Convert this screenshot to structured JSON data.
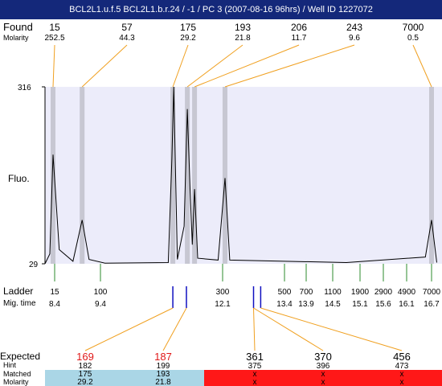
{
  "title": "BCL2L1.u.f.5  BCL2L1.b.r.24 / -1 / PC 3 (2007-08-16 96hrs) / Well ID 1227072",
  "colors": {
    "title_bg": "#14287a",
    "plot_bg": "#ececfa",
    "peak_band": "#c7c7d2",
    "found_link": "#f0a020",
    "ladder_tick": "#2e8b2e",
    "expected_mark": "#1010c0",
    "expected_red": "#e01818",
    "matched_ok": "#aad6e6",
    "matched_fail": "#ff1818"
  },
  "labels": {
    "found": "Found",
    "molarity": "Molarity",
    "fluo": "Fluo.",
    "ladder": "Ladder",
    "mig_time": "Mig. time",
    "expected": "Expected",
    "hint": "Hint",
    "matched": "Matched",
    "molarity_bottom": "Molarity"
  },
  "chart_data": {
    "type": "line",
    "ylabel": "Fluo.",
    "ylim": [
      29,
      316
    ],
    "y_ticks": [
      "316",
      "29"
    ],
    "found": [
      {
        "size": "15",
        "molarity": "252.5",
        "time": 8.35
      },
      {
        "size": "57",
        "molarity": "44.3",
        "time": 9.0
      },
      {
        "size": "175",
        "molarity": "29.2",
        "time": 11.0
      },
      {
        "size": "193",
        "molarity": "21.8",
        "time": 11.32
      },
      {
        "size": "206",
        "molarity": "11.7",
        "time": 11.48
      },
      {
        "size": "243",
        "molarity": "9.6",
        "time": 12.15
      },
      {
        "size": "7000",
        "molarity": "0.5",
        "time": 16.7
      }
    ],
    "ladder": [
      {
        "size": "15",
        "time": "8.4"
      },
      {
        "size": "100",
        "time": "9.4"
      },
      {
        "size": "300",
        "time": "12.1"
      },
      {
        "size": "500",
        "time": "13.4"
      },
      {
        "size": "700",
        "time": "13.9"
      },
      {
        "size": "1100",
        "time": "14.5"
      },
      {
        "size": "1900",
        "time": "15.1"
      },
      {
        "size": "2900",
        "time": "15.6"
      },
      {
        "size": "4900",
        "time": "16.1"
      },
      {
        "size": "7000",
        "time": "16.7"
      }
    ],
    "trace": [
      {
        "time": 8.1,
        "y": 29
      },
      {
        "time": 8.25,
        "y": 45
      },
      {
        "time": 8.35,
        "y": 206
      },
      {
        "time": 8.5,
        "y": 52
      },
      {
        "time": 8.8,
        "y": 33
      },
      {
        "time": 9.0,
        "y": 100
      },
      {
        "time": 9.15,
        "y": 36
      },
      {
        "time": 9.5,
        "y": 30
      },
      {
        "time": 10.9,
        "y": 31
      },
      {
        "time": 10.98,
        "y": 200
      },
      {
        "time": 11.02,
        "y": 316
      },
      {
        "time": 11.1,
        "y": 36
      },
      {
        "time": 11.25,
        "y": 90
      },
      {
        "time": 11.32,
        "y": 280
      },
      {
        "time": 11.38,
        "y": 150
      },
      {
        "time": 11.43,
        "y": 60
      },
      {
        "time": 11.48,
        "y": 150
      },
      {
        "time": 11.55,
        "y": 38
      },
      {
        "time": 12.0,
        "y": 35
      },
      {
        "time": 12.15,
        "y": 168
      },
      {
        "time": 12.25,
        "y": 35
      },
      {
        "time": 14.8,
        "y": 31
      },
      {
        "time": 16.55,
        "y": 40
      },
      {
        "time": 16.7,
        "y": 100
      },
      {
        "time": 16.8,
        "y": 31
      }
    ],
    "expected": [
      {
        "size": "169",
        "hint": "182",
        "matched": "175",
        "molarity": "29.2",
        "found": true
      },
      {
        "size": "187",
        "hint": "199",
        "matched": "193",
        "molarity": "21.8",
        "found": true
      },
      {
        "size": "361",
        "hint": "375",
        "matched": "x",
        "molarity": "x",
        "found": false
      },
      {
        "size": "370",
        "hint": "396",
        "matched": "x",
        "molarity": "x",
        "found": false
      },
      {
        "size": "456",
        "hint": "473",
        "matched": "x",
        "molarity": "x",
        "found": false
      }
    ],
    "expected_size_colors": [
      "#e01818",
      "#e01818",
      "#000000",
      "#000000",
      "#000000"
    ],
    "expected_marks": [
      {
        "time": 11.0
      },
      {
        "time": 11.3
      },
      {
        "time": 12.75
      },
      {
        "time": 12.9
      }
    ]
  }
}
